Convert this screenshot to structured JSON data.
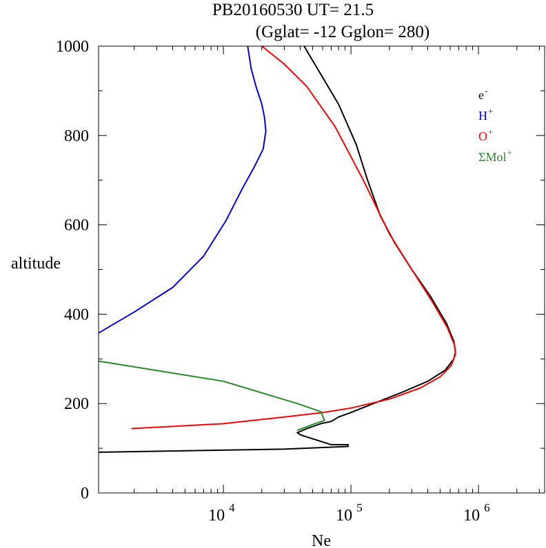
{
  "chart_data": {
    "type": "line",
    "title": "PB20160530   UT=  21.5",
    "subtitle": "(Gglat= -12   Gglon=  280)",
    "xlabel": "Ne",
    "ylabel": "altitude",
    "xscale": "log",
    "xlim": [
      1050,
      3300000
    ],
    "ylim": [
      0,
      1000
    ],
    "y_ticks": [
      "0",
      "200",
      "400",
      "600",
      "800",
      "1000"
    ],
    "x_ticks": [
      {
        "base": "10",
        "exp": "4",
        "value": 10000
      },
      {
        "base": "10",
        "exp": "5",
        "value": 100000
      },
      {
        "base": "10",
        "exp": "6",
        "value": 1000000
      }
    ],
    "legend_position": "top-right",
    "series": [
      {
        "name": "e-",
        "label_base": "e",
        "label_sup": "-",
        "color": "#000000",
        "points": [
          [
            1050,
            91
          ],
          [
            30000,
            98
          ],
          [
            95000,
            104
          ],
          [
            95000,
            108
          ],
          [
            70000,
            108
          ],
          [
            40000,
            130
          ],
          [
            38000,
            135
          ],
          [
            46000,
            145
          ],
          [
            58000,
            155
          ],
          [
            70000,
            160
          ],
          [
            80000,
            170
          ],
          [
            100000,
            180
          ],
          [
            150000,
            200
          ],
          [
            250000,
            225
          ],
          [
            400000,
            250
          ],
          [
            550000,
            275
          ],
          [
            640000,
            300
          ],
          [
            660000,
            315
          ],
          [
            640000,
            340
          ],
          [
            560000,
            380
          ],
          [
            420000,
            440
          ],
          [
            300000,
            500
          ],
          [
            220000,
            560
          ],
          [
            170000,
            620
          ],
          [
            135000,
            700
          ],
          [
            110000,
            780
          ],
          [
            80000,
            870
          ],
          [
            60000,
            930
          ],
          [
            45000,
            990
          ],
          [
            43000,
            1000
          ]
        ]
      },
      {
        "name": "H+",
        "label_base": "H",
        "label_sup": "+",
        "color": "#0000ee",
        "points": [
          [
            1050,
            358
          ],
          [
            2000,
            405
          ],
          [
            4000,
            460
          ],
          [
            7000,
            530
          ],
          [
            10500,
            610
          ],
          [
            14000,
            680
          ],
          [
            17500,
            730
          ],
          [
            20500,
            770
          ],
          [
            21500,
            810
          ],
          [
            21000,
            840
          ],
          [
            20000,
            870
          ],
          [
            18000,
            910
          ],
          [
            16500,
            950
          ],
          [
            15500,
            1000
          ]
        ]
      },
      {
        "name": "O+",
        "label_base": "O",
        "label_sup": "+",
        "color": "#ff0000",
        "points": [
          [
            1900,
            144
          ],
          [
            10000,
            155
          ],
          [
            30000,
            170
          ],
          [
            60000,
            180
          ],
          [
            100000,
            190
          ],
          [
            200000,
            210
          ],
          [
            350000,
            235
          ],
          [
            500000,
            260
          ],
          [
            610000,
            285
          ],
          [
            660000,
            310
          ],
          [
            650000,
            330
          ],
          [
            570000,
            370
          ],
          [
            430000,
            430
          ],
          [
            300000,
            500
          ],
          [
            200000,
            580
          ],
          [
            125000,
            700
          ],
          [
            75000,
            820
          ],
          [
            45000,
            910
          ],
          [
            30000,
            960
          ],
          [
            20000,
            1000
          ]
        ]
      },
      {
        "name": "ΣMol+",
        "label_base": "ΣMol",
        "label_sup": "+",
        "color": "#228b22",
        "points": [
          [
            1050,
            295
          ],
          [
            10000,
            250
          ],
          [
            38000,
            200
          ],
          [
            58000,
            182
          ],
          [
            62000,
            162
          ],
          [
            52000,
            155
          ],
          [
            38000,
            140
          ]
        ]
      }
    ]
  }
}
